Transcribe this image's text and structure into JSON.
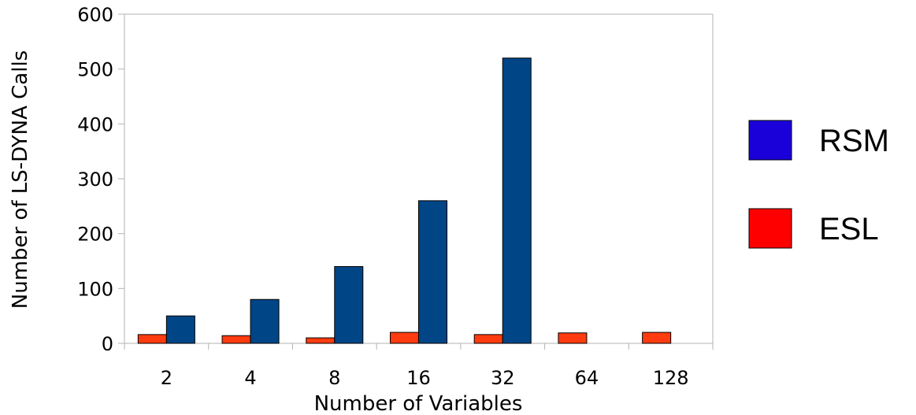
{
  "chart_data": {
    "type": "bar",
    "categories": [
      "2",
      "4",
      "8",
      "16",
      "32",
      "64",
      "128"
    ],
    "series": [
      {
        "name": "ESL",
        "values": [
          16,
          14,
          10,
          20,
          16,
          19,
          20
        ],
        "color": "#ff3b0f",
        "legend_color": "#ff0000"
      },
      {
        "name": "RSM",
        "values": [
          50,
          80,
          140,
          260,
          520,
          null,
          null
        ],
        "color": "#004586",
        "legend_color": "#1a00d9"
      }
    ],
    "legend_order": [
      "RSM",
      "ESL"
    ],
    "title": "",
    "xlabel": "Number of Variables",
    "ylabel": "Number of LS-DYNA Calls",
    "ylim": [
      0,
      600
    ],
    "yticks": [
      0,
      100,
      200,
      300,
      400,
      500,
      600
    ],
    "grid": false,
    "legend_position": "right"
  }
}
